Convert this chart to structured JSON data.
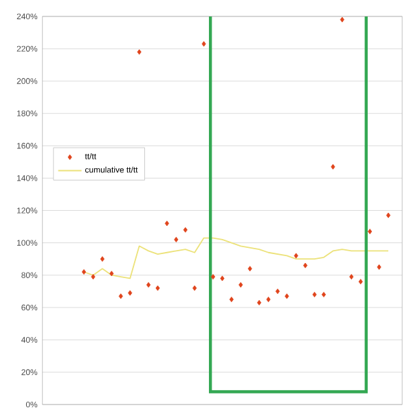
{
  "chart_data": {
    "type": "scatter",
    "categories": [
      null,
      null,
      null,
      null,
      null,
      null,
      null,
      null,
      null,
      null,
      null,
      null,
      null,
      null,
      null,
      null,
      null,
      null,
      null,
      null,
      null,
      null,
      null,
      null,
      null,
      null,
      null,
      null,
      null,
      null,
      null,
      null,
      null,
      null
    ],
    "series": [
      {
        "name": "tt/tt",
        "color": "#e0441c",
        "marker": "diamond",
        "values": [
          82,
          79,
          90,
          81,
          67,
          69,
          218,
          74,
          72,
          112,
          102,
          108,
          72,
          223,
          79,
          78,
          65,
          74,
          84,
          63,
          65,
          70,
          67,
          92,
          86,
          68,
          68,
          147,
          238,
          79,
          76,
          107,
          85,
          117
        ]
      },
      {
        "name": "cumulative tt/tt",
        "type": "line",
        "color": "#ece27a",
        "values": [
          82,
          80,
          84,
          80,
          79,
          78,
          98,
          95,
          93,
          94,
          95,
          96,
          94,
          103,
          103,
          102,
          100,
          98,
          97,
          96,
          94,
          93,
          92,
          90,
          90,
          90,
          91,
          95,
          96,
          95,
          95,
          95,
          95,
          95
        ]
      }
    ],
    "ylim": [
      0,
      240
    ],
    "yticks": [
      {
        "value": 0,
        "label": "0%"
      },
      {
        "value": 20,
        "label": "20%"
      },
      {
        "value": 40,
        "label": "40%"
      },
      {
        "value": 60,
        "label": "60%"
      },
      {
        "value": 80,
        "label": "80%"
      },
      {
        "value": 100,
        "label": "100%"
      },
      {
        "value": 120,
        "label": "120%"
      },
      {
        "value": 140,
        "label": "140%"
      },
      {
        "value": 160,
        "label": "160%"
      },
      {
        "value": 180,
        "label": "180%"
      },
      {
        "value": 200,
        "label": "200%"
      },
      {
        "value": 220,
        "label": "220%"
      },
      {
        "value": 240,
        "label": "240%"
      }
    ],
    "grid": "y",
    "legend": "left"
  }
}
